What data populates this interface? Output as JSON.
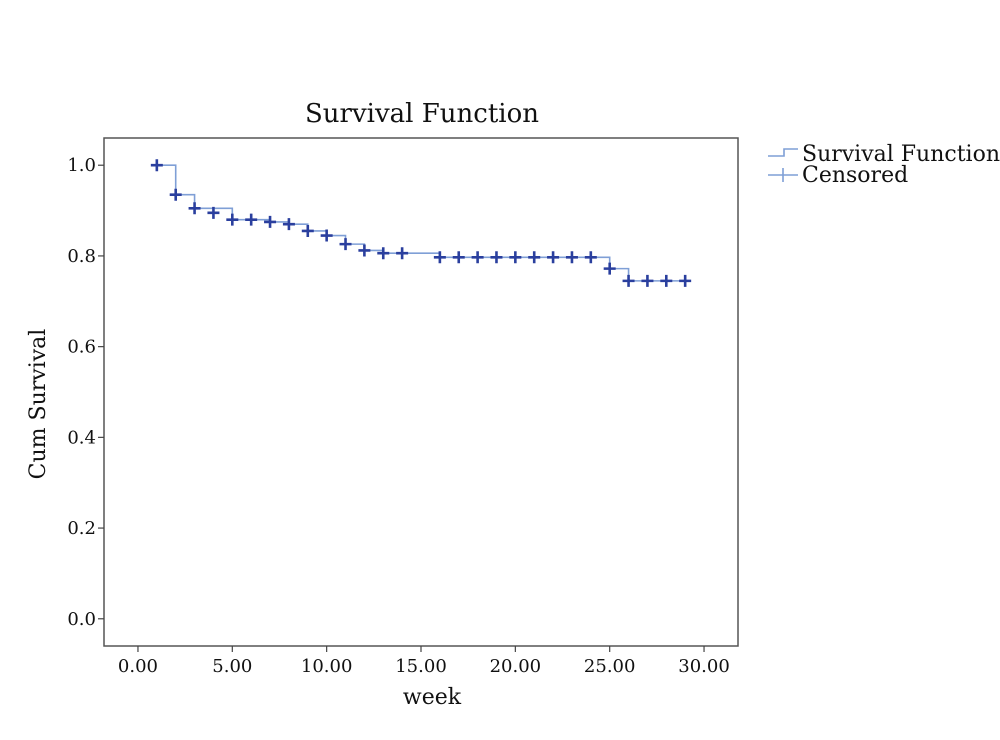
{
  "chart_data": {
    "type": "line",
    "title": "Survival Function",
    "xlabel": "week",
    "ylabel": "Cum Survival",
    "xlim": [
      -1.8,
      31.8
    ],
    "ylim": [
      -0.06,
      1.06
    ],
    "xticks": [
      0,
      5,
      10,
      15,
      20,
      25,
      30
    ],
    "xtick_labels": [
      "0.00",
      "5.00",
      "10.00",
      "15.00",
      "20.00",
      "25.00",
      "30.00"
    ],
    "yticks": [
      0,
      0.2,
      0.4,
      0.6,
      0.8,
      1.0
    ],
    "ytick_labels": [
      "0.0",
      "0.2",
      "0.4",
      "0.6",
      "0.8",
      "1.0"
    ],
    "grid": false,
    "legend_position": "outside-top-right",
    "series": [
      {
        "name": "Survival Function",
        "color": "#7f9fd6",
        "steps": [
          {
            "x": 1,
            "y": 1.0
          },
          {
            "x": 2,
            "y": 0.935
          },
          {
            "x": 3,
            "y": 0.905
          },
          {
            "x": 5,
            "y": 0.88
          },
          {
            "x": 7,
            "y": 0.875
          },
          {
            "x": 8,
            "y": 0.87
          },
          {
            "x": 9,
            "y": 0.855
          },
          {
            "x": 10,
            "y": 0.845
          },
          {
            "x": 11,
            "y": 0.826
          },
          {
            "x": 12,
            "y": 0.812
          },
          {
            "x": 13,
            "y": 0.806
          },
          {
            "x": 16,
            "y": 0.797
          },
          {
            "x": 25,
            "y": 0.772
          },
          {
            "x": 26,
            "y": 0.745
          },
          {
            "x": 29,
            "y": 0.745
          }
        ]
      },
      {
        "name": "Censored",
        "color": "#2a3f9e",
        "points": [
          {
            "x": 1,
            "y": 1.0
          },
          {
            "x": 2,
            "y": 0.935
          },
          {
            "x": 3,
            "y": 0.905
          },
          {
            "x": 4,
            "y": 0.895
          },
          {
            "x": 5,
            "y": 0.88
          },
          {
            "x": 6,
            "y": 0.88
          },
          {
            "x": 7,
            "y": 0.875
          },
          {
            "x": 8,
            "y": 0.87
          },
          {
            "x": 9,
            "y": 0.855
          },
          {
            "x": 10,
            "y": 0.845
          },
          {
            "x": 11,
            "y": 0.826
          },
          {
            "x": 12,
            "y": 0.812
          },
          {
            "x": 13,
            "y": 0.806
          },
          {
            "x": 14,
            "y": 0.806
          },
          {
            "x": 16,
            "y": 0.797
          },
          {
            "x": 17,
            "y": 0.797
          },
          {
            "x": 18,
            "y": 0.797
          },
          {
            "x": 19,
            "y": 0.797
          },
          {
            "x": 20,
            "y": 0.797
          },
          {
            "x": 21,
            "y": 0.797
          },
          {
            "x": 22,
            "y": 0.797
          },
          {
            "x": 23,
            "y": 0.797
          },
          {
            "x": 24,
            "y": 0.797
          },
          {
            "x": 25,
            "y": 0.772
          },
          {
            "x": 26,
            "y": 0.745
          },
          {
            "x": 27,
            "y": 0.745
          },
          {
            "x": 28,
            "y": 0.745
          },
          {
            "x": 29,
            "y": 0.745
          }
        ]
      }
    ]
  }
}
